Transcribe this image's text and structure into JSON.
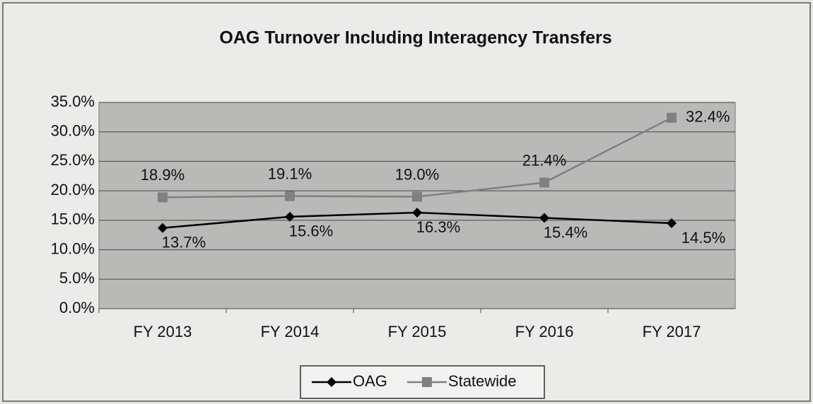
{
  "chart_data": {
    "type": "line",
    "title": "OAG Turnover Including Interagency Transfers",
    "categories": [
      "FY 2013",
      "FY 2014",
      "FY 2015",
      "FY 2016",
      "FY 2017"
    ],
    "series": [
      {
        "name": "OAG",
        "color": "#000000",
        "marker": "diamond",
        "values": [
          13.7,
          15.6,
          16.3,
          15.4,
          14.5
        ],
        "value_labels": [
          "13.7%",
          "15.6%",
          "16.3%",
          "15.4%",
          "14.5%"
        ]
      },
      {
        "name": "Statewide",
        "color": "#808080",
        "marker": "square",
        "values": [
          18.9,
          19.1,
          19.0,
          21.4,
          32.4
        ],
        "value_labels": [
          "18.9%",
          "19.1%",
          "19.0%",
          "21.4%",
          "32.4%"
        ]
      }
    ],
    "ylim": [
      0,
      35
    ],
    "yticks": [
      {
        "value": 0,
        "label": "0.0%"
      },
      {
        "value": 5,
        "label": "5.0%"
      },
      {
        "value": 10,
        "label": "10.0%"
      },
      {
        "value": 15,
        "label": "15.0%"
      },
      {
        "value": 20,
        "label": "20.0%"
      },
      {
        "value": 25,
        "label": "25.0%"
      },
      {
        "value": 30,
        "label": "30.0%"
      },
      {
        "value": 35,
        "label": "35.0%"
      }
    ],
    "grid": true,
    "legend": "bottom"
  }
}
